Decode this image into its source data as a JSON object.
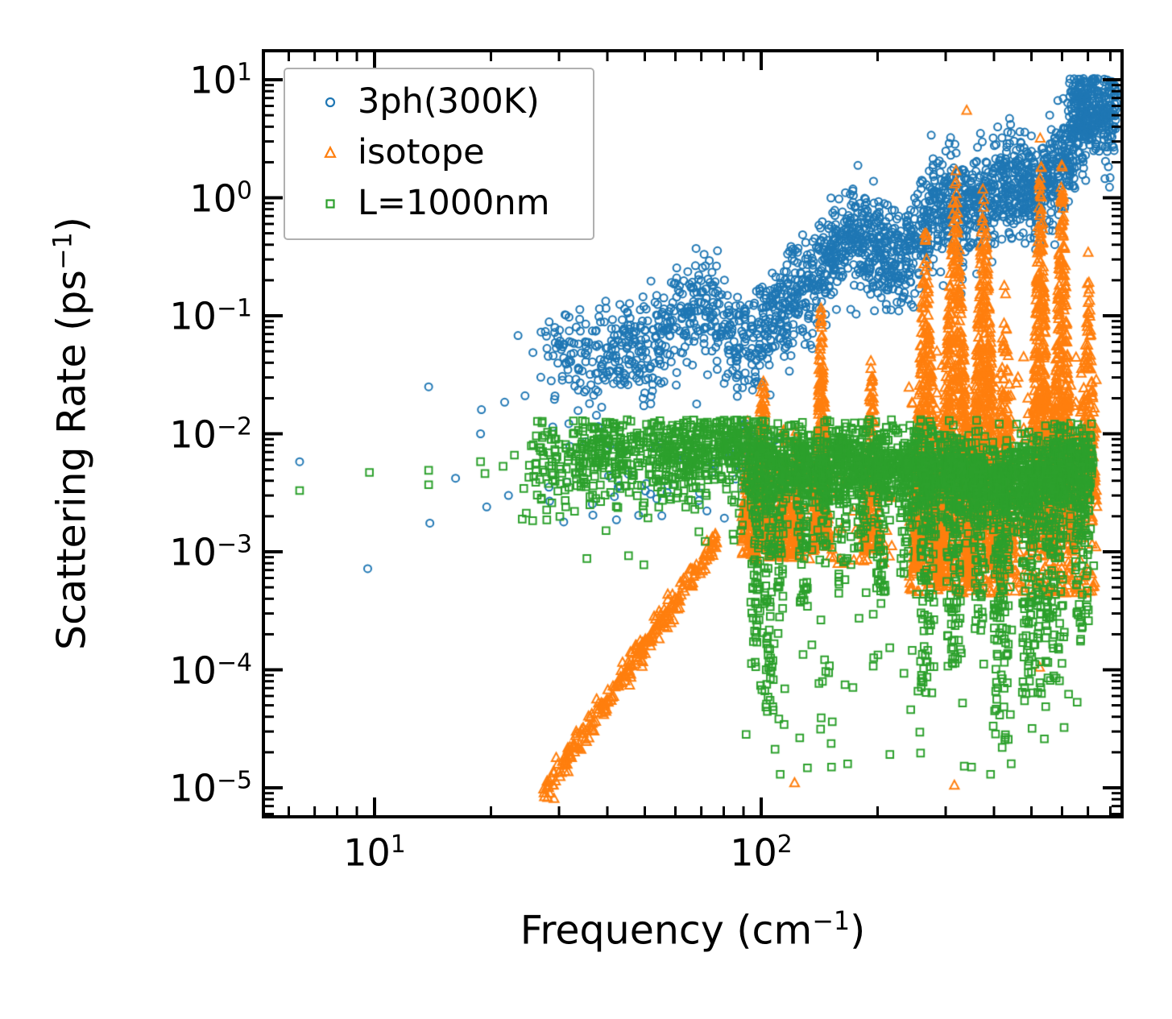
{
  "chart_data": {
    "type": "scatter",
    "x_scale": "log",
    "y_scale": "log",
    "grid": false,
    "background": "#ffffff",
    "spine_color": "#000000",
    "xlabel": {
      "prefix": "Frequency (cm",
      "sup": "−1",
      "suffix": ")"
    },
    "ylabel": {
      "prefix": "Scattering Rate (ps",
      "sup": "−1",
      "suffix": ")"
    },
    "x_range": [
      5.2,
      866
    ],
    "y_range": [
      5.7e-06,
      17.6
    ],
    "x_major_ticks": [
      {
        "value": 10,
        "base": "10",
        "exp": "1"
      },
      {
        "value": 100,
        "base": "10",
        "exp": "2"
      }
    ],
    "x_minor_ticks": [
      6,
      7,
      8,
      9,
      20,
      30,
      40,
      50,
      60,
      70,
      80,
      90,
      200,
      300,
      400,
      500,
      600,
      700,
      800
    ],
    "y_major_ticks": [
      {
        "value": 10.0,
        "base": "10",
        "exp": "1"
      },
      {
        "value": 1.0,
        "base": "10",
        "exp": "0"
      },
      {
        "value": 0.1,
        "base": "10",
        "exp": "−1"
      },
      {
        "value": 0.01,
        "base": "10",
        "exp": "−2"
      },
      {
        "value": 0.001,
        "base": "10",
        "exp": "−3"
      },
      {
        "value": 0.0001,
        "base": "10",
        "exp": "−4"
      },
      {
        "value": 1e-05,
        "base": "10",
        "exp": "−5"
      }
    ],
    "legend": {
      "position": "upper left",
      "labels": [
        "3ph(300K)",
        "isotope",
        "L=1000nm"
      ]
    },
    "series": [
      {
        "name": "3ph_300K",
        "label": "3ph(300K)",
        "marker": "circle",
        "color": "#1f77b4",
        "seed": 101,
        "points": [
          [
            6.4,
            0.0058
          ],
          [
            9.6,
            0.00072
          ],
          [
            13.8,
            0.025
          ],
          [
            13.9,
            0.00175
          ],
          [
            16.2,
            0.0042
          ],
          [
            18.8,
            0.01
          ],
          [
            18.9,
            0.016
          ],
          [
            19.5,
            0.0024
          ],
          [
            21.7,
            0.0185
          ],
          [
            22.2,
            0.003
          ],
          [
            23.5,
            0.068
          ],
          [
            24.5,
            0.021
          ]
        ],
        "cloud": [
          {
            "kind": "band",
            "n": 2300,
            "lx0": 1.4,
            "lx1": 2.92,
            "skew": 0.65,
            "center": [
              [
                1.4,
                -1.55
              ],
              [
                1.6,
                -1.22
              ],
              [
                1.8,
                -1.08
              ],
              [
                1.95,
                -1.06
              ],
              [
                2.0,
                -1.05
              ],
              [
                2.1,
                -0.82
              ],
              [
                2.25,
                -0.42
              ],
              [
                2.4,
                -0.25
              ],
              [
                2.55,
                -0.08
              ],
              [
                2.7,
                0.22
              ],
              [
                2.82,
                0.5
              ],
              [
                2.92,
                0.62
              ]
            ],
            "sigma": 0.22,
            "wiggle": [
              0.12,
              18,
              0.08,
              31
            ],
            "clampTop": 1.015,
            "tailP": 0.06,
            "tailAmp": 0.6
          },
          {
            "kind": "uniform",
            "n": 55,
            "lx0": 1.45,
            "lx1": 2.05,
            "ly0": -2.75,
            "ly1": -1.9,
            "pow": 1.2
          },
          {
            "kind": "uniform",
            "n": 90,
            "lx0": 2.795,
            "lx1": 2.86,
            "ly0": 0.5,
            "ly1": 1.01,
            "pow": 1.0
          }
        ]
      },
      {
        "name": "isotope",
        "label": "isotope",
        "marker": "triangle",
        "color": "#ff7f0e",
        "seed": 202,
        "points": [
          [
            340,
            5.5
          ],
          [
            122,
            1.1e-05
          ],
          [
            316,
            1.05e-05
          ],
          [
            525,
            0.000105
          ],
          [
            432,
            0.0009
          ],
          [
            452,
            0.0016
          ]
        ],
        "cloud": [
          {
            "kind": "band",
            "n": 280,
            "lx0": 1.435,
            "lx1": 1.885,
            "skew": 1.0,
            "center": [
              [
                1.435,
                -5.05
              ],
              [
                1.885,
                -2.9
              ]
            ],
            "sigma": 0.06
          },
          {
            "kind": "spike",
            "n": 90,
            "lxc": 1.965,
            "halfw": 0.015,
            "base": -3.05,
            "peak": -1.78,
            "tipPow": 0.7
          },
          {
            "kind": "spike",
            "n": 260,
            "lxc": 2.004,
            "halfw": 0.022,
            "base": -3.05,
            "peak": -1.33,
            "tipPow": 0.7
          },
          {
            "kind": "spike",
            "n": 120,
            "lxc": 2.058,
            "halfw": 0.015,
            "base": -3.05,
            "peak": -1.85,
            "tipPow": 0.7
          },
          {
            "kind": "spike",
            "n": 90,
            "lxc": 2.09,
            "halfw": 0.012,
            "base": -3.05,
            "peak": -1.95,
            "tipPow": 0.7
          },
          {
            "kind": "spike",
            "n": 280,
            "lxc": 2.155,
            "halfw": 0.02,
            "base": -3.0,
            "peak": -0.9,
            "tipPow": 0.7
          },
          {
            "kind": "spike",
            "n": 170,
            "lxc": 2.285,
            "halfw": 0.018,
            "base": -3.0,
            "peak": -1.25,
            "tipPow": 0.7
          },
          {
            "kind": "uniform",
            "n": 90,
            "lx0": 1.95,
            "lx1": 2.34,
            "ly0": -3.1,
            "ly1": -2.25,
            "pow": 1.3
          },
          {
            "kind": "spike",
            "n": 420,
            "lxc": 2.425,
            "halfw": 0.032,
            "base": -3.2,
            "peak": -0.15,
            "tipPow": 0.75
          },
          {
            "kind": "spike",
            "n": 650,
            "lxc": 2.502,
            "halfw": 0.042,
            "base": -3.3,
            "peak": 0.36,
            "tipPow": 0.75
          },
          {
            "kind": "spike",
            "n": 520,
            "lxc": 2.576,
            "halfw": 0.036,
            "base": -3.2,
            "peak": 0.3,
            "tipPow": 0.75
          },
          {
            "kind": "spike",
            "n": 150,
            "lxc": 2.63,
            "halfw": 0.02,
            "base": -3.0,
            "peak": -0.55,
            "tipPow": 0.8
          },
          {
            "kind": "spike",
            "n": 430,
            "lxc": 2.722,
            "halfw": 0.024,
            "base": -3.0,
            "peak": 0.58,
            "tipPow": 0.7
          },
          {
            "kind": "spike",
            "n": 430,
            "lxc": 2.778,
            "halfw": 0.026,
            "base": -3.0,
            "peak": 0.38,
            "tipPow": 0.7
          },
          {
            "kind": "spike",
            "n": 150,
            "lxc": 2.845,
            "halfw": 0.02,
            "base": -2.6,
            "peak": -0.4,
            "tipPow": 0.8
          },
          {
            "kind": "uniform",
            "n": 520,
            "lx0": 2.38,
            "lx1": 2.87,
            "ly0": -3.35,
            "ly1": -1.3,
            "pow": 1.7
          }
        ]
      },
      {
        "name": "L_1000nm",
        "label": "L=1000nm",
        "marker": "square",
        "color": "#2ca02c",
        "seed": 303,
        "points": [
          [
            6.4,
            0.0033
          ],
          [
            9.7,
            0.0047
          ],
          [
            13.8,
            0.0049
          ],
          [
            13.8,
            0.0037
          ],
          [
            18.8,
            0.0058
          ],
          [
            19.3,
            0.0046
          ],
          [
            21.5,
            0.0053
          ],
          [
            23,
            0.0066
          ],
          [
            112,
            1.3e-05
          ],
          [
            152,
            1.5e-05
          ],
          [
            350,
            1.5e-05
          ],
          [
            392,
            1.3e-05
          ],
          [
            420,
            2.2e-05
          ],
          [
            540,
            2.6e-05
          ]
        ],
        "cloud": [
          {
            "kind": "band",
            "n": 2600,
            "lx0": 1.38,
            "lx1": 2.86,
            "skew": 0.7,
            "center": [
              [
                1.38,
                -2.28
              ],
              [
                1.55,
                -2.18
              ],
              [
                1.7,
                -2.12
              ],
              [
                1.85,
                -2.12
              ],
              [
                2.0,
                -2.18
              ],
              [
                2.15,
                -2.22
              ],
              [
                2.3,
                -2.25
              ],
              [
                2.45,
                -2.32
              ],
              [
                2.6,
                -2.35
              ],
              [
                2.75,
                -2.32
              ],
              [
                2.86,
                -2.3
              ]
            ],
            "sigma": 0.17,
            "wiggle": [
              0.05,
              14,
              0.03,
              23
            ],
            "clampTop": -1.88,
            "tailP": 0.22,
            "tailAmp": 1.0
          },
          {
            "kind": "streak",
            "n": 90,
            "lxc": 1.985,
            "halfw": 0.012,
            "top": -2.1,
            "bottom": -4.0,
            "pow": 1.8
          },
          {
            "kind": "streak",
            "n": 110,
            "lxc": 2.02,
            "halfw": 0.012,
            "top": -2.1,
            "bottom": -4.4,
            "pow": 1.8
          },
          {
            "kind": "streak",
            "n": 50,
            "lxc": 2.05,
            "halfw": 0.008,
            "top": -2.2,
            "bottom": -3.6,
            "pow": 1.8
          },
          {
            "kind": "streak",
            "n": 70,
            "lxc": 2.11,
            "halfw": 0.012,
            "top": -2.1,
            "bottom": -3.5,
            "pow": 1.8
          },
          {
            "kind": "streak",
            "n": 45,
            "lxc": 2.16,
            "halfw": 0.01,
            "top": -2.2,
            "bottom": -3.2,
            "pow": 1.8
          },
          {
            "kind": "streak",
            "n": 60,
            "lxc": 2.21,
            "halfw": 0.013,
            "top": -2.1,
            "bottom": -3.3,
            "pow": 1.8
          },
          {
            "kind": "streak",
            "n": 40,
            "lxc": 2.26,
            "halfw": 0.01,
            "top": -2.2,
            "bottom": -3.0,
            "pow": 1.8
          },
          {
            "kind": "streak",
            "n": 55,
            "lxc": 2.31,
            "halfw": 0.012,
            "top": -2.2,
            "bottom": -3.4,
            "pow": 1.8
          },
          {
            "kind": "streak",
            "n": 45,
            "lxc": 2.37,
            "halfw": 0.012,
            "top": -2.2,
            "bottom": -3.2,
            "pow": 1.8
          },
          {
            "kind": "streak",
            "n": 120,
            "lxc": 2.43,
            "halfw": 0.018,
            "top": -2.2,
            "bottom": -4.2,
            "pow": 1.8
          },
          {
            "kind": "streak",
            "n": 130,
            "lxc": 2.5,
            "halfw": 0.02,
            "top": -2.2,
            "bottom": -4.0,
            "pow": 1.8
          },
          {
            "kind": "streak",
            "n": 90,
            "lxc": 2.56,
            "halfw": 0.015,
            "top": -2.2,
            "bottom": -3.8,
            "pow": 1.8
          },
          {
            "kind": "streak",
            "n": 130,
            "lxc": 2.62,
            "halfw": 0.02,
            "top": -2.3,
            "bottom": -4.6,
            "pow": 1.8
          },
          {
            "kind": "streak",
            "n": 160,
            "lxc": 2.7,
            "halfw": 0.025,
            "top": -2.3,
            "bottom": -4.3,
            "pow": 1.8
          },
          {
            "kind": "streak",
            "n": 150,
            "lxc": 2.76,
            "halfw": 0.025,
            "top": -2.3,
            "bottom": -4.1,
            "pow": 1.8
          },
          {
            "kind": "streak",
            "n": 80,
            "lxc": 2.83,
            "halfw": 0.018,
            "top": -2.4,
            "bottom": -3.8,
            "pow": 1.8
          },
          {
            "kind": "uniform",
            "n": 80,
            "lx0": 1.95,
            "lx1": 2.87,
            "ly0": -4.9,
            "ly1": -3.3,
            "pow": 0.75
          }
        ]
      }
    ]
  }
}
